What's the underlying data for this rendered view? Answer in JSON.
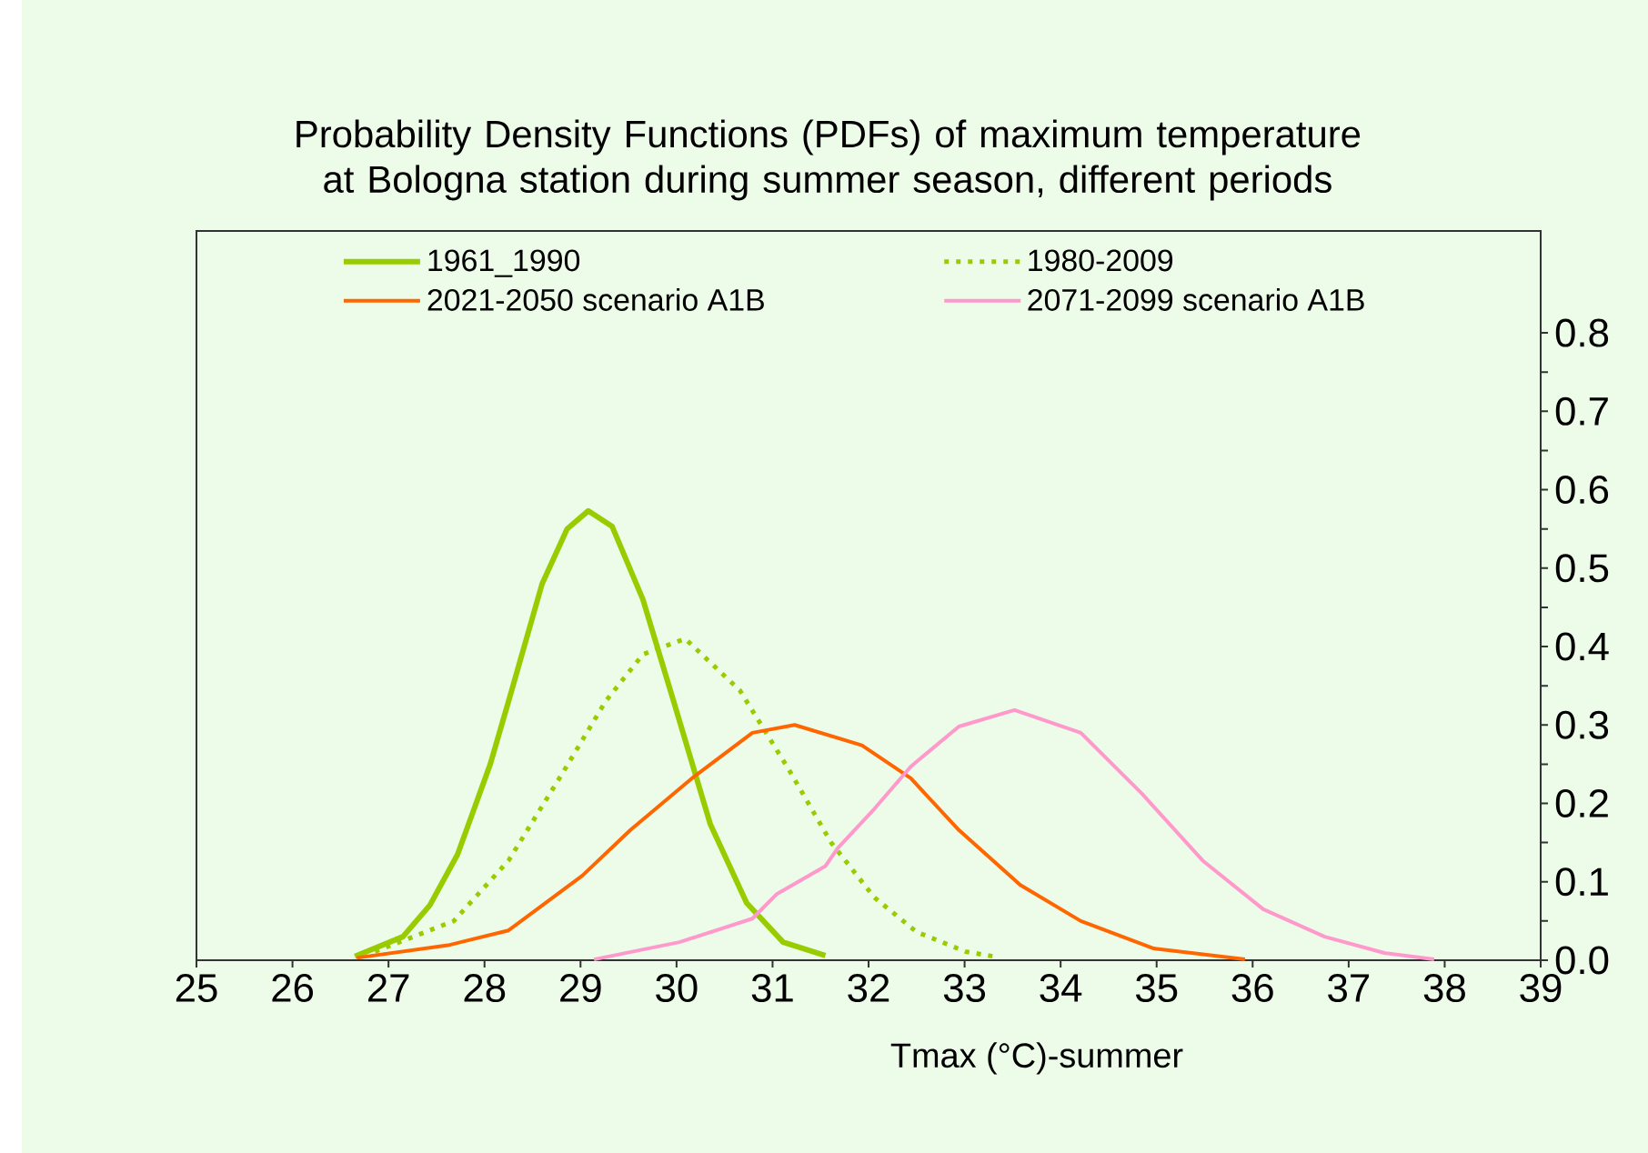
{
  "chart_data": {
    "type": "line",
    "title": "Probability Density Functions (PDFs) of maximum temperature at Bologna station during summer season, different periods",
    "xlabel": "Tmax (°C)-summer",
    "xlim": [
      25,
      39
    ],
    "xticks": [
      25,
      26,
      27,
      28,
      29,
      30,
      31,
      32,
      33,
      34,
      35,
      36,
      37,
      38,
      39
    ],
    "ylim": [
      0,
      0.93
    ],
    "yticks": [
      {
        "value": 0,
        "label": "0.0"
      },
      {
        "value": 0.05,
        "label": null
      },
      0.1,
      {
        "value": 0.15,
        "label": null
      },
      0.2,
      {
        "value": 0.25,
        "label": null
      },
      0.3,
      {
        "value": 0.35,
        "label": null
      },
      0.4,
      {
        "value": 0.45,
        "label": null
      },
      0.5,
      {
        "value": 0.55,
        "label": null
      },
      0.6,
      {
        "value": 0.65,
        "label": null
      },
      0.7,
      {
        "value": 0.75,
        "label": null
      },
      0.8
    ],
    "grid": false,
    "legend": "top",
    "series": [
      {
        "name": "1961_1990",
        "color": "#99cc00",
        "line_style": "solid",
        "x": [
          26.65,
          27.15,
          27.43,
          27.72,
          28.06,
          28.25,
          28.6,
          28.86,
          29.08,
          29.33,
          29.65,
          29.97,
          30.35,
          30.73,
          31.11,
          31.55
        ],
        "values": [
          0.005,
          0.03,
          0.07,
          0.135,
          0.25,
          0.33,
          0.48,
          0.55,
          0.573,
          0.553,
          0.46,
          0.33,
          0.174,
          0.073,
          0.023,
          0.006
        ]
      },
      {
        "name": "1980-2009",
        "color": "#99cc00",
        "line_style": "dotted",
        "x": [
          26.86,
          27.68,
          28.25,
          28.82,
          29.26,
          29.65,
          30.09,
          30.66,
          31.17,
          31.61,
          32.06,
          32.5,
          33.01,
          33.29
        ],
        "values": [
          0.011,
          0.05,
          0.127,
          0.24,
          0.33,
          0.39,
          0.41,
          0.344,
          0.243,
          0.15,
          0.08,
          0.036,
          0.011,
          0.005
        ]
      },
      {
        "name": "2021-2050 scenario A1B",
        "color": "#ff6600",
        "line_style": "solid",
        "x": [
          26.67,
          27.62,
          28.25,
          29.02,
          29.52,
          30.16,
          30.79,
          31.23,
          31.93,
          32.44,
          32.94,
          33.58,
          34.21,
          34.97,
          35.92
        ],
        "values": [
          0.003,
          0.019,
          0.038,
          0.108,
          0.166,
          0.232,
          0.29,
          0.3,
          0.274,
          0.232,
          0.166,
          0.096,
          0.05,
          0.015,
          0.001
        ]
      },
      {
        "name": "2071-2099 scenario A1B",
        "color": "#ff99cc",
        "line_style": "solid",
        "x": [
          29.14,
          30.03,
          30.79,
          31.04,
          31.55,
          31.68,
          32.06,
          32.44,
          32.94,
          33.52,
          34.21,
          34.85,
          35.48,
          36.11,
          36.75,
          37.38,
          37.89
        ],
        "values": [
          0.001,
          0.023,
          0.053,
          0.084,
          0.12,
          0.143,
          0.193,
          0.247,
          0.298,
          0.319,
          0.29,
          0.212,
          0.127,
          0.065,
          0.03,
          0.009,
          0.001
        ]
      }
    ]
  }
}
